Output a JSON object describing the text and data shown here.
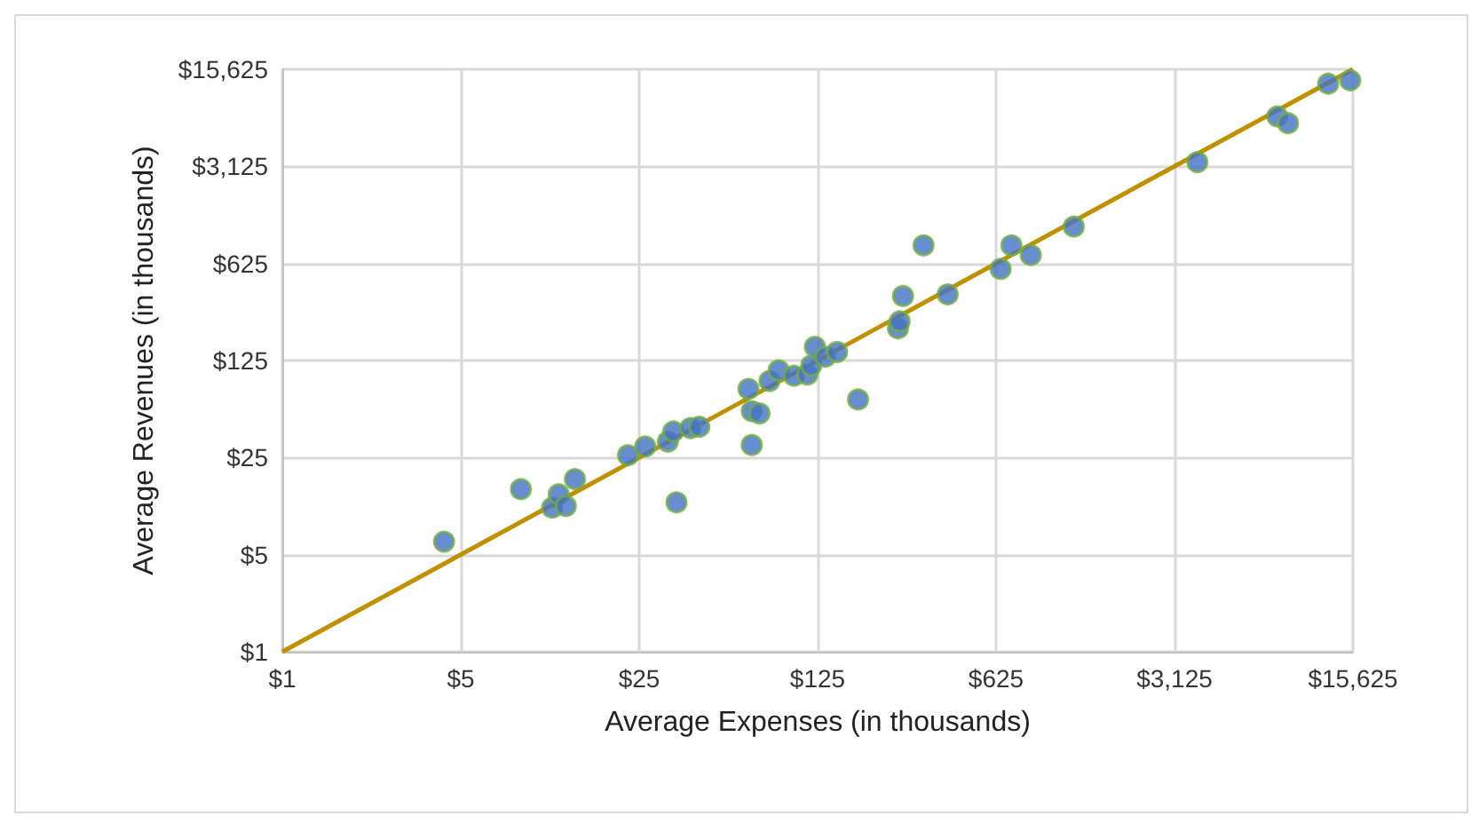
{
  "chart_data": {
    "type": "scatter",
    "xlabel": "Average Expenses (in thousands)",
    "ylabel": "Average Revenues (in thousands)",
    "log": "xy",
    "grid": true,
    "marker": "circle",
    "xlim": [
      1,
      15625
    ],
    "ylim": [
      1,
      15625
    ],
    "xticks": [
      {
        "value": 1,
        "label": "$1"
      },
      {
        "value": 5,
        "label": "$5"
      },
      {
        "value": 25,
        "label": "$25"
      },
      {
        "value": 125,
        "label": "$125"
      },
      {
        "value": 625,
        "label": "$625"
      },
      {
        "value": 3125,
        "label": "$3,125"
      },
      {
        "value": 15625,
        "label": "$15,625"
      }
    ],
    "yticks": [
      {
        "value": 1,
        "label": "$1"
      },
      {
        "value": 5,
        "label": "$5"
      },
      {
        "value": 25,
        "label": "$25"
      },
      {
        "value": 125,
        "label": "$125"
      },
      {
        "value": 625,
        "label": "$625"
      },
      {
        "value": 3125,
        "label": "$3,125"
      },
      {
        "value": 15625,
        "label": "$15,625"
      }
    ],
    "series": [
      {
        "color": "#4472c4",
        "x": [
          4.3,
          8.6,
          11.4,
          12.1,
          12.9,
          14,
          22.6,
          26.4,
          32.4,
          34,
          35,
          39.7,
          43,
          67,
          69,
          69,
          74,
          81,
          88,
          101,
          114,
          118,
          122,
          134,
          149,
          180,
          258,
          262,
          270,
          325,
          404,
          651,
          718,
          855,
          1260,
          3840,
          7900,
          8700,
          12500,
          15250
        ],
        "values": [
          6.2,
          14.8,
          10.9,
          13.6,
          11.2,
          17.5,
          26,
          30,
          32.6,
          38.5,
          11.9,
          40.8,
          41.7,
          78,
          30.8,
          54,
          52,
          89,
          106,
          97,
          99,
          115,
          157,
          133,
          144,
          65.5,
          213,
          239,
          364,
          843,
          374,
          570,
          843,
          718,
          1150,
          3350,
          7150,
          6390,
          12300,
          13000
        ]
      },
      {
        "type": "line",
        "color": "#bf9000",
        "marker": "none",
        "line_style": "solid",
        "x": [
          1,
          15625
        ],
        "values": [
          1,
          15625
        ]
      }
    ]
  }
}
